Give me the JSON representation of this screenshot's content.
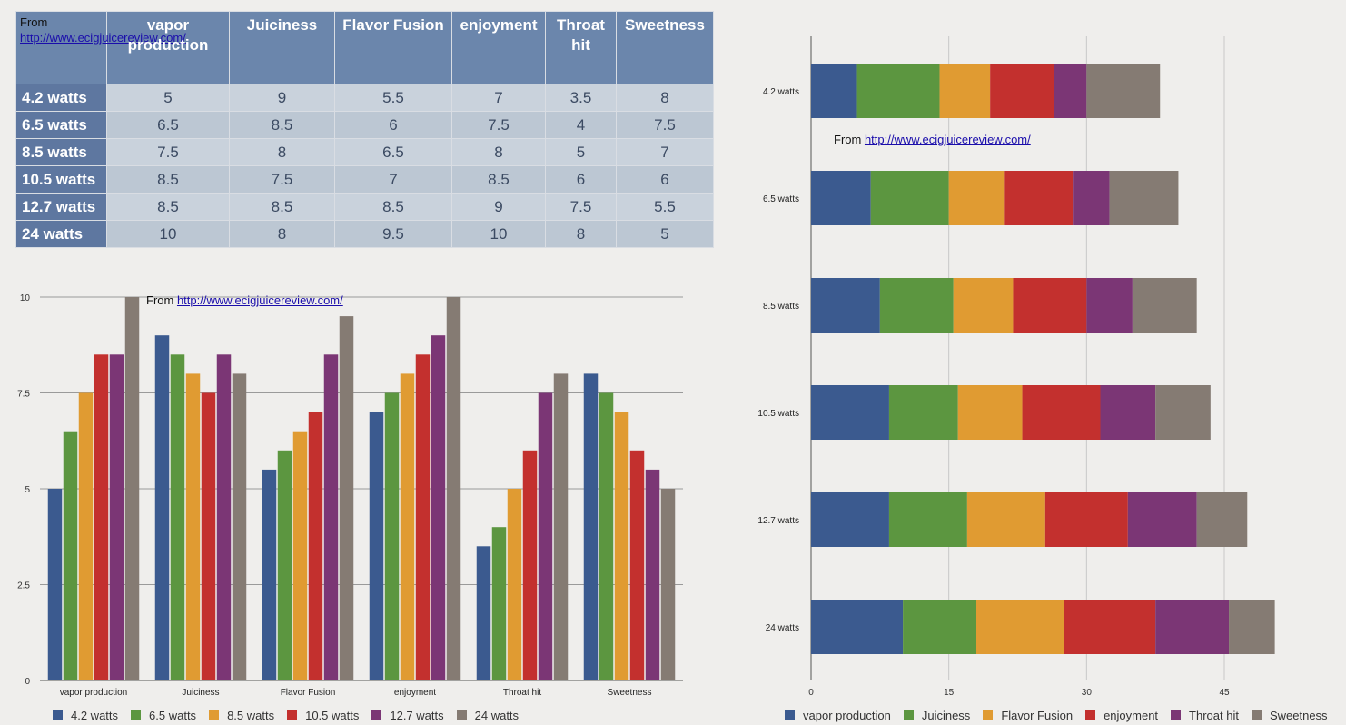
{
  "colors": {
    "series": [
      "#3b5a8f",
      "#5c9640",
      "#e09b32",
      "#c3302e",
      "#7b3675",
      "#857b73"
    ],
    "table_header": "#6b86ac"
  },
  "source": {
    "prefix": "From ",
    "url": "http://www.ecigjuicereview.com/"
  },
  "table": {
    "corner_prefix": "From ",
    "corner_link": "http://www.ecigjuicereview.com/",
    "columns": [
      "vapor production",
      "Juiciness",
      "Flavor Fusion",
      "enjoyment",
      "Throat hit",
      "Sweetness"
    ],
    "rows": [
      {
        "label": "4.2 watts",
        "cells": [
          "5",
          "9",
          "5.5",
          "7",
          "3.5",
          "8"
        ]
      },
      {
        "label": "6.5 watts",
        "cells": [
          "6.5",
          "8.5",
          "6",
          "7.5",
          "4",
          "7.5"
        ]
      },
      {
        "label": "8.5 watts",
        "cells": [
          "7.5",
          "8",
          "6.5",
          "8",
          "5",
          "7"
        ]
      },
      {
        "label": "10.5 watts",
        "cells": [
          "8.5",
          "7.5",
          "7",
          "8.5",
          "6",
          "6"
        ]
      },
      {
        "label": "12.7 watts",
        "cells": [
          "8.5",
          "8.5",
          "8.5",
          "9",
          "7.5",
          "5.5"
        ]
      },
      {
        "label": "24 watts",
        "cells": [
          "10",
          "8",
          "9.5",
          "10",
          "8",
          "5"
        ]
      }
    ]
  },
  "chart_data": [
    {
      "type": "bar",
      "orientation": "vertical",
      "categories": [
        "vapor production",
        "Juiciness",
        "Flavor Fusion",
        "enjoyment",
        "Throat hit",
        "Sweetness"
      ],
      "series": [
        {
          "name": "4.2 watts",
          "values": [
            5,
            9,
            5.5,
            7,
            3.5,
            8
          ]
        },
        {
          "name": "6.5 watts",
          "values": [
            6.5,
            8.5,
            6,
            7.5,
            4,
            7.5
          ]
        },
        {
          "name": "8.5 watts",
          "values": [
            7.5,
            8,
            6.5,
            8,
            5,
            7
          ]
        },
        {
          "name": "10.5 watts",
          "values": [
            8.5,
            7.5,
            7,
            8.5,
            6,
            6
          ]
        },
        {
          "name": "12.7 watts",
          "values": [
            8.5,
            8.5,
            8.5,
            9,
            7.5,
            5.5
          ]
        },
        {
          "name": "24 watts",
          "values": [
            10,
            8,
            9.5,
            10,
            8,
            5
          ]
        }
      ],
      "ylim": [
        0,
        10
      ],
      "yticks": [
        0,
        2.5,
        5,
        7.5,
        10
      ],
      "ytick_labels": [
        "0",
        "2.5",
        "5",
        "7.5",
        "10"
      ],
      "annotation": "From http://www.ecigjuicereview.com/",
      "legend": "bottom",
      "grid": true
    },
    {
      "type": "bar",
      "orientation": "horizontal",
      "stacked": true,
      "categories": [
        "4.2 watts",
        "6.5 watts",
        "8.5 watts",
        "10.5 watts",
        "12.7 watts",
        "24 watts"
      ],
      "series": [
        {
          "name": "vapor production",
          "values": [
            5,
            6.5,
            7.5,
            8.5,
            8.5,
            10
          ]
        },
        {
          "name": "Juiciness",
          "values": [
            9,
            8.5,
            8,
            7.5,
            8.5,
            8
          ]
        },
        {
          "name": "Flavor Fusion",
          "values": [
            5.5,
            6,
            6.5,
            7,
            8.5,
            9.5
          ]
        },
        {
          "name": "enjoyment",
          "values": [
            7,
            7.5,
            8,
            8.5,
            9,
            10
          ]
        },
        {
          "name": "Throat hit",
          "values": [
            3.5,
            4,
            5,
            6,
            7.5,
            8
          ]
        },
        {
          "name": "Sweetness",
          "values": [
            8,
            7.5,
            7,
            6,
            5.5,
            5
          ]
        }
      ],
      "xlim": [
        0,
        57
      ],
      "xticks": [
        0,
        15,
        30,
        45
      ],
      "xtick_labels": [
        "0",
        "15",
        "30",
        "45"
      ],
      "annotation": "From http://www.ecigjuicereview.com/",
      "legend": "bottom",
      "grid": true
    }
  ]
}
